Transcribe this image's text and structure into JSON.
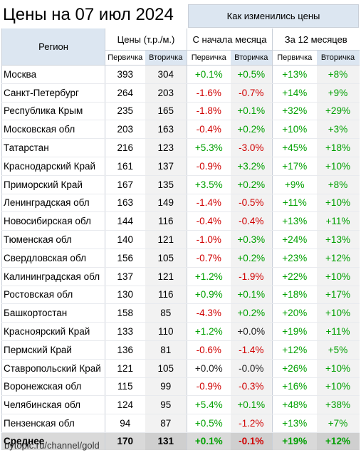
{
  "title": "Цены на 07 июл 2024",
  "changes_header": "Как изменились цены",
  "columns": {
    "region": "Регион",
    "prices": "Цены (т.р./м.)",
    "since_month": "С начала месяца",
    "year": "За 12 месяцев",
    "primary": "Первичка",
    "secondary": "Вторичка"
  },
  "rows": [
    {
      "region": "Москва",
      "p": "393",
      "s": "304",
      "mp": "+0.1%",
      "ms": "+0.5%",
      "yp": "+13%",
      "ys": "+8%"
    },
    {
      "region": "Санкт-Петербург",
      "p": "264",
      "s": "203",
      "mp": "-1.6%",
      "ms": "-0.7%",
      "yp": "+14%",
      "ys": "+9%"
    },
    {
      "region": "Республика Крым",
      "p": "235",
      "s": "165",
      "mp": "-1.8%",
      "ms": "+0.1%",
      "yp": "+32%",
      "ys": "+29%"
    },
    {
      "region": "Московская обл",
      "p": "203",
      "s": "163",
      "mp": "-0.4%",
      "ms": "+0.2%",
      "yp": "+10%",
      "ys": "+3%"
    },
    {
      "region": "Татарстан",
      "p": "216",
      "s": "123",
      "mp": "+5.3%",
      "ms": "-3.0%",
      "yp": "+45%",
      "ys": "+18%"
    },
    {
      "region": "Краснодарский Край",
      "p": "161",
      "s": "137",
      "mp": "-0.9%",
      "ms": "+3.2%",
      "yp": "+17%",
      "ys": "+10%"
    },
    {
      "region": "Приморский Край",
      "p": "167",
      "s": "135",
      "mp": "+3.5%",
      "ms": "+0.2%",
      "yp": "+9%",
      "ys": "+8%"
    },
    {
      "region": "Ленинградская обл",
      "p": "163",
      "s": "149",
      "mp": "-1.4%",
      "ms": "-0.5%",
      "yp": "+11%",
      "ys": "+10%"
    },
    {
      "region": "Новосибирская обл",
      "p": "144",
      "s": "116",
      "mp": "-0.4%",
      "ms": "-0.4%",
      "yp": "+13%",
      "ys": "+11%"
    },
    {
      "region": "Тюменская обл",
      "p": "140",
      "s": "121",
      "mp": "-1.0%",
      "ms": "+0.3%",
      "yp": "+24%",
      "ys": "+13%"
    },
    {
      "region": "Свердловская обл",
      "p": "156",
      "s": "105",
      "mp": "-0.7%",
      "ms": "+0.2%",
      "yp": "+23%",
      "ys": "+12%"
    },
    {
      "region": "Калининградская обл",
      "p": "137",
      "s": "121",
      "mp": "+1.2%",
      "ms": "-1.9%",
      "yp": "+22%",
      "ys": "+10%"
    },
    {
      "region": "Ростовская обл",
      "p": "130",
      "s": "116",
      "mp": "+0.9%",
      "ms": "+0.1%",
      "yp": "+18%",
      "ys": "+17%"
    },
    {
      "region": "Башкортостан",
      "p": "158",
      "s": "85",
      "mp": "-4.3%",
      "ms": "+0.2%",
      "yp": "+20%",
      "ys": "+10%"
    },
    {
      "region": "Красноярский Край",
      "p": "133",
      "s": "110",
      "mp": "+1.2%",
      "ms": "+0.0%",
      "yp": "+19%",
      "ys": "+11%"
    },
    {
      "region": "Пермский Край",
      "p": "136",
      "s": "81",
      "mp": "-0.6%",
      "ms": "-1.4%",
      "yp": "+12%",
      "ys": "+5%"
    },
    {
      "region": "Ставропольский Край",
      "p": "121",
      "s": "105",
      "mp": "+0.0%",
      "ms": "-0.0%",
      "yp": "+26%",
      "ys": "+10%"
    },
    {
      "region": "Воронежская обл",
      "p": "115",
      "s": "99",
      "mp": "-0.9%",
      "ms": "-0.3%",
      "yp": "+16%",
      "ys": "+10%"
    },
    {
      "region": "Челябинская обл",
      "p": "124",
      "s": "95",
      "mp": "+5.4%",
      "ms": "+0.1%",
      "yp": "+48%",
      "ys": "+38%"
    },
    {
      "region": "Пензенская обл",
      "p": "94",
      "s": "87",
      "mp": "+0.5%",
      "ms": "-1.2%",
      "yp": "+13%",
      "ys": "+7%"
    }
  ],
  "average": {
    "region": "Среднее",
    "p": "170",
    "s": "131",
    "mp": "+0.1%",
    "ms": "-0.1%",
    "yp": "+19%",
    "ys": "+12%"
  },
  "footer": "bytopic.ru/channel/gold",
  "colors": {
    "positive": "#00a000",
    "negative": "#d00000",
    "header_band": "#dce6f1"
  }
}
